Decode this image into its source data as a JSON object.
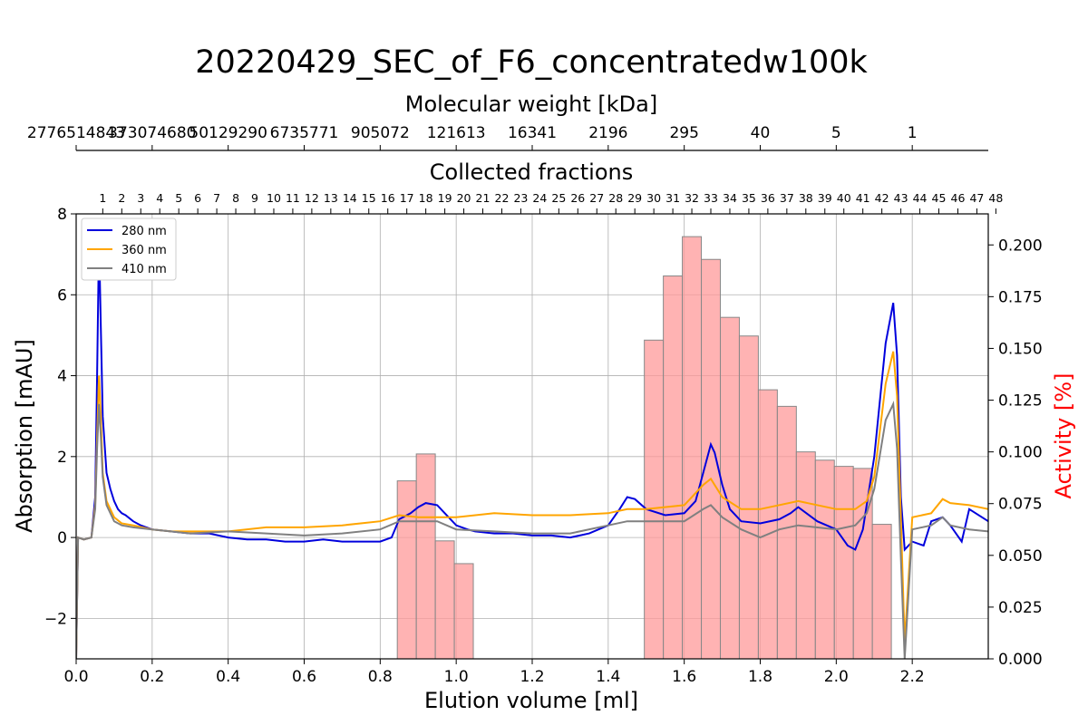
{
  "chart_data": {
    "type": "line",
    "title": "20220429_SEC_of_F6_concentratedw100k",
    "xlabel": "Elution volume [ml]",
    "ylabel": "Absorption [mAU]",
    "y2label": "Activity [%]",
    "top_axis_mw_label": "Molecular weight [kDa]",
    "top_axis_fractions_label": "Collected fractions",
    "xlim": [
      0.0,
      2.4
    ],
    "ylim": [
      -3,
      8
    ],
    "y2lim": [
      0.0,
      0.215
    ],
    "x_ticks": [
      "0.0",
      "0.2",
      "0.4",
      "0.6",
      "0.8",
      "1.0",
      "1.2",
      "1.4",
      "1.6",
      "1.8",
      "2.0",
      "2.2"
    ],
    "y_ticks": [
      "−2",
      "0",
      "2",
      "4",
      "6",
      "8"
    ],
    "y2_ticks": [
      "0.000",
      "0.025",
      "0.050",
      "0.075",
      "0.100",
      "0.125",
      "0.150",
      "0.175",
      "0.200"
    ],
    "mw_ticks": [
      {
        "x": 0.0,
        "label": "2776514843"
      },
      {
        "x": 0.2,
        "label": "373074680"
      },
      {
        "x": 0.4,
        "label": "50129290"
      },
      {
        "x": 0.6,
        "label": "6735771"
      },
      {
        "x": 0.8,
        "label": "905072"
      },
      {
        "x": 1.0,
        "label": "121613"
      },
      {
        "x": 1.2,
        "label": "16341"
      },
      {
        "x": 1.4,
        "label": "2196"
      },
      {
        "x": 1.6,
        "label": "295"
      },
      {
        "x": 1.8,
        "label": "40"
      },
      {
        "x": 2.0,
        "label": "5"
      },
      {
        "x": 2.2,
        "label": "1"
      }
    ],
    "fractions": {
      "first_center": 0.07,
      "step": 0.05,
      "labels": [
        "1",
        "2",
        "3",
        "4",
        "5",
        "6",
        "7",
        "8",
        "9",
        "10",
        "11",
        "12",
        "13",
        "14",
        "15",
        "16",
        "17",
        "18",
        "19",
        "20",
        "21",
        "22",
        "23",
        "24",
        "25",
        "26",
        "27",
        "28",
        "29",
        "30",
        "31",
        "32",
        "33",
        "34",
        "35",
        "36",
        "37",
        "38",
        "39",
        "40",
        "41",
        "42",
        "43",
        "44",
        "45",
        "46",
        "47",
        "48"
      ]
    },
    "grid": true,
    "legend_position": "top-left",
    "colors": {
      "nm280": "#0000dd",
      "nm360": "#ffa500",
      "nm410": "#808080",
      "activity_bar": "#ff9999",
      "y2_label": "#ff0000"
    },
    "activity_bars": {
      "width": 0.05,
      "bars": [
        {
          "x0": 0.845,
          "value": 0.086
        },
        {
          "x0": 0.895,
          "value": 0.099
        },
        {
          "x0": 0.945,
          "value": 0.057
        },
        {
          "x0": 0.995,
          "value": 0.046
        },
        {
          "x0": 1.495,
          "value": 0.154
        },
        {
          "x0": 1.545,
          "value": 0.185
        },
        {
          "x0": 1.595,
          "value": 0.204
        },
        {
          "x0": 1.645,
          "value": 0.193
        },
        {
          "x0": 1.695,
          "value": 0.165
        },
        {
          "x0": 1.745,
          "value": 0.156
        },
        {
          "x0": 1.795,
          "value": 0.13
        },
        {
          "x0": 1.845,
          "value": 0.122
        },
        {
          "x0": 1.895,
          "value": 0.1
        },
        {
          "x0": 1.945,
          "value": 0.096
        },
        {
          "x0": 1.995,
          "value": 0.093
        },
        {
          "x0": 2.045,
          "value": 0.092
        },
        {
          "x0": 2.095,
          "value": 0.065
        }
      ]
    },
    "series": [
      {
        "name": "280 nm",
        "color": "#0000dd",
        "x": [
          0.0,
          0.005,
          0.02,
          0.04,
          0.05,
          0.055,
          0.06,
          0.065,
          0.07,
          0.08,
          0.09,
          0.1,
          0.11,
          0.12,
          0.13,
          0.15,
          0.17,
          0.2,
          0.25,
          0.3,
          0.35,
          0.4,
          0.45,
          0.5,
          0.55,
          0.6,
          0.65,
          0.7,
          0.75,
          0.8,
          0.83,
          0.85,
          0.88,
          0.9,
          0.92,
          0.95,
          0.97,
          1.0,
          1.03,
          1.05,
          1.1,
          1.15,
          1.2,
          1.25,
          1.3,
          1.35,
          1.4,
          1.43,
          1.45,
          1.47,
          1.5,
          1.55,
          1.6,
          1.63,
          1.65,
          1.67,
          1.68,
          1.7,
          1.72,
          1.75,
          1.8,
          1.85,
          1.88,
          1.9,
          1.95,
          2.0,
          2.03,
          2.05,
          2.07,
          2.1,
          2.13,
          2.15,
          2.16,
          2.17,
          2.18,
          2.2,
          2.23,
          2.25,
          2.28,
          2.3,
          2.33,
          2.35,
          2.4
        ],
        "values": [
          -3.0,
          0.0,
          -0.05,
          0.0,
          1.0,
          4.0,
          7.4,
          5.2,
          3.0,
          1.6,
          1.2,
          0.9,
          0.7,
          0.6,
          0.55,
          0.4,
          0.3,
          0.2,
          0.15,
          0.1,
          0.1,
          0.0,
          -0.05,
          -0.05,
          -0.1,
          -0.1,
          -0.05,
          -0.1,
          -0.1,
          -0.1,
          0.0,
          0.45,
          0.6,
          0.75,
          0.85,
          0.8,
          0.6,
          0.3,
          0.2,
          0.15,
          0.1,
          0.1,
          0.05,
          0.05,
          0.0,
          0.1,
          0.3,
          0.7,
          1.0,
          0.95,
          0.7,
          0.55,
          0.6,
          0.9,
          1.6,
          2.3,
          2.1,
          1.3,
          0.7,
          0.4,
          0.35,
          0.45,
          0.6,
          0.75,
          0.4,
          0.2,
          -0.2,
          -0.3,
          0.2,
          2.0,
          4.8,
          5.8,
          4.5,
          1.0,
          -0.3,
          -0.1,
          -0.2,
          0.4,
          0.5,
          0.3,
          -0.1,
          0.7,
          0.4
        ]
      },
      {
        "name": "360 nm",
        "color": "#ffa500",
        "x": [
          0.0,
          0.005,
          0.02,
          0.04,
          0.05,
          0.055,
          0.06,
          0.065,
          0.07,
          0.08,
          0.1,
          0.12,
          0.15,
          0.2,
          0.25,
          0.3,
          0.4,
          0.5,
          0.6,
          0.7,
          0.8,
          0.85,
          0.9,
          0.95,
          1.0,
          1.1,
          1.2,
          1.3,
          1.4,
          1.45,
          1.5,
          1.6,
          1.65,
          1.67,
          1.7,
          1.75,
          1.8,
          1.9,
          2.0,
          2.05,
          2.08,
          2.1,
          2.13,
          2.15,
          2.16,
          2.17,
          2.18,
          2.2,
          2.25,
          2.28,
          2.3,
          2.35,
          2.4
        ],
        "values": [
          -3.0,
          0.0,
          -0.05,
          0.0,
          0.8,
          2.5,
          4.0,
          3.0,
          1.6,
          0.9,
          0.5,
          0.35,
          0.3,
          0.2,
          0.15,
          0.15,
          0.15,
          0.25,
          0.25,
          0.3,
          0.4,
          0.55,
          0.5,
          0.5,
          0.5,
          0.6,
          0.55,
          0.55,
          0.6,
          0.7,
          0.7,
          0.8,
          1.3,
          1.45,
          1.0,
          0.7,
          0.7,
          0.9,
          0.7,
          0.7,
          0.9,
          1.5,
          3.8,
          4.6,
          3.5,
          0.5,
          -2.6,
          0.5,
          0.6,
          0.95,
          0.85,
          0.8,
          0.7
        ]
      },
      {
        "name": "410 nm",
        "color": "#808080",
        "x": [
          0.0,
          0.005,
          0.02,
          0.04,
          0.05,
          0.055,
          0.06,
          0.065,
          0.07,
          0.08,
          0.1,
          0.12,
          0.15,
          0.2,
          0.3,
          0.4,
          0.5,
          0.6,
          0.7,
          0.8,
          0.85,
          0.9,
          0.95,
          1.0,
          1.1,
          1.2,
          1.3,
          1.4,
          1.45,
          1.5,
          1.6,
          1.65,
          1.67,
          1.7,
          1.75,
          1.8,
          1.85,
          1.9,
          2.0,
          2.05,
          2.08,
          2.1,
          2.13,
          2.15,
          2.16,
          2.17,
          2.18,
          2.2,
          2.25,
          2.28,
          2.3,
          2.35,
          2.4
        ],
        "values": [
          -3.0,
          0.0,
          -0.05,
          0.0,
          0.7,
          2.2,
          3.3,
          2.5,
          1.5,
          0.8,
          0.4,
          0.3,
          0.25,
          0.2,
          0.1,
          0.15,
          0.1,
          0.05,
          0.1,
          0.2,
          0.4,
          0.4,
          0.4,
          0.2,
          0.15,
          0.1,
          0.1,
          0.3,
          0.4,
          0.4,
          0.4,
          0.7,
          0.8,
          0.5,
          0.2,
          0.0,
          0.2,
          0.3,
          0.2,
          0.3,
          0.6,
          1.2,
          2.9,
          3.3,
          2.2,
          -0.5,
          -3.0,
          0.2,
          0.3,
          0.5,
          0.3,
          0.2,
          0.15
        ]
      }
    ]
  }
}
